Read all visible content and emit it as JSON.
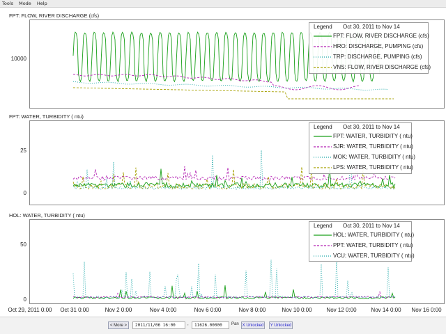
{
  "menu": [
    "Tools",
    "Mode",
    "Help"
  ],
  "panels": [
    {
      "title": "FPT: FLOW, RIVER DISCHARGE (cfs)",
      "yticks": [
        "10000"
      ],
      "legend": {
        "title": "Legend",
        "range": "Oct 30, 2011 to Nov 14",
        "entries": [
          {
            "label": "FPT: FLOW, RIVER DISCHARGE (cfs)",
            "color": "#1aa01a",
            "dash": "solid"
          },
          {
            "label": "HRO: DISCHARGE, PUMPING (cfs)",
            "color": "#b21db2",
            "dash": "dashed"
          },
          {
            "label": "TRP: DISCHARGE, PUMPING (cfs)",
            "color": "#1aa6a6",
            "dash": "dotted"
          },
          {
            "label": "VNS: FLOW, RIVER DISCHARGE (cfs)",
            "color": "#a6a000",
            "dash": "dashed"
          }
        ]
      }
    },
    {
      "title": "FPT: WATER, TURBIDITY (  ntu)",
      "yticks": [
        "25",
        "0"
      ],
      "legend": {
        "title": "Legend",
        "range": "Oct 30, 2011 to Nov 14",
        "entries": [
          {
            "label": "FPT: WATER, TURBIDITY (  ntu)",
            "color": "#1aa01a",
            "dash": "solid"
          },
          {
            "label": "SJR: WATER, TURBIDITY (  ntu)",
            "color": "#b21db2",
            "dash": "dashed"
          },
          {
            "label": "MOK: WATER, TURBIDITY (  ntu)",
            "color": "#1aa6a6",
            "dash": "dotted"
          },
          {
            "label": "LPS: WATER, TURBIDITY (  ntu)",
            "color": "#a6a000",
            "dash": "dashed"
          }
        ]
      }
    },
    {
      "title": "HOL: WATER, TURBIDITY (  ntu)",
      "yticks": [
        "50",
        "0"
      ],
      "legend": {
        "title": "Legend",
        "range": "Oct 30, 2011 to Nov 14",
        "entries": [
          {
            "label": "HOL: WATER, TURBIDITY (  ntu)",
            "color": "#1aa01a",
            "dash": "solid"
          },
          {
            "label": "PPT: WATER, TURBIDITY (  ntu)",
            "color": "#b21db2",
            "dash": "dashed"
          },
          {
            "label": "VCU: WATER, TURBIDITY (  ntu)",
            "color": "#1aa6a6",
            "dash": "dotted"
          }
        ]
      }
    }
  ],
  "xaxis": [
    "Oct 29, 2011 0:00",
    "Oct 31 0:00",
    "Nov 2 0:00",
    "Nov 4 0:00",
    "Nov 6 0:00",
    "Nov 8 0:00",
    "Nov 10 0:00",
    "Nov 12 0:00",
    "Nov 14 0:00",
    "Nov 16 0:00"
  ],
  "controls": {
    "more_label": "< More >",
    "time_value": "2011/11/06 16:00",
    "sep1": ",",
    "value_value": "11626.00000",
    "pan_label": "Pan",
    "x_lock_label": "X Unlocked",
    "y_lock_label": "Y Unlocked"
  },
  "colors": {
    "green": "#1aa01a",
    "magenta": "#b21db2",
    "cyan": "#1aa6a6",
    "olive": "#a6a000"
  }
}
